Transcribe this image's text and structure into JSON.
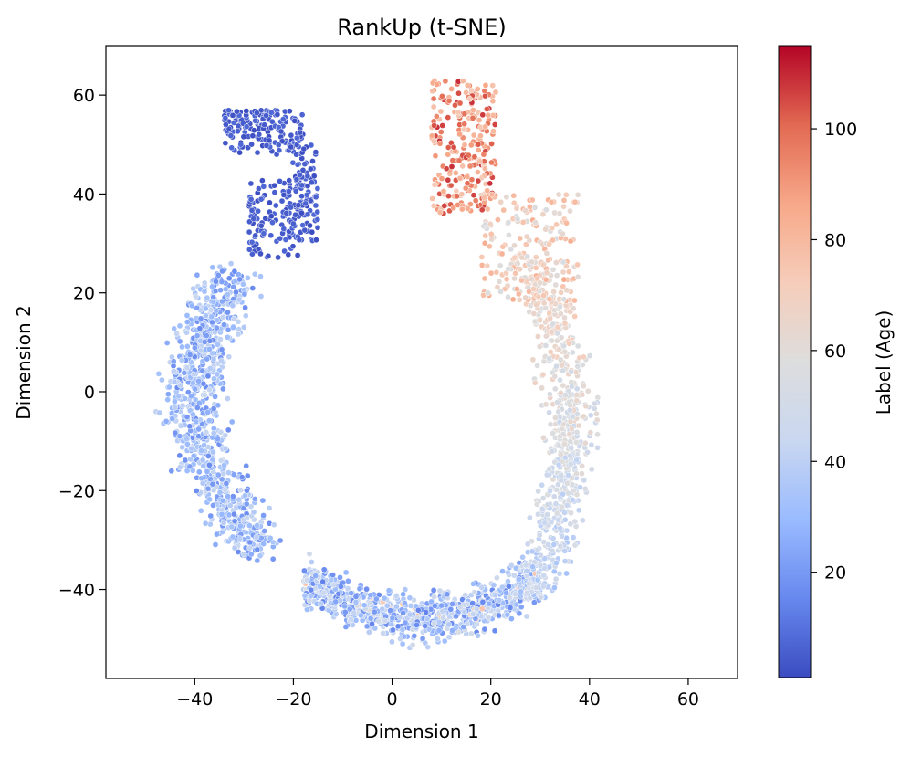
{
  "chart_data": {
    "type": "scatter",
    "title": "RankUp (t-SNE)",
    "xlabel": "Dimension 1",
    "ylabel": "Dimension 2",
    "xlim": [
      -58,
      70
    ],
    "ylim": [
      -58,
      70
    ],
    "xticks": [
      -40,
      -20,
      0,
      20,
      40,
      60
    ],
    "yticks": [
      -40,
      -20,
      0,
      20,
      40,
      60
    ],
    "xtick_labels": [
      "−40",
      "−20",
      "0",
      "20",
      "40",
      "60"
    ],
    "ytick_labels": [
      "−40",
      "−20",
      "0",
      "20",
      "40",
      "60"
    ],
    "grid": false,
    "colorbar": {
      "label": "Label (Age)",
      "range": [
        1,
        115
      ],
      "ticks": [
        20,
        40,
        60,
        80,
        100
      ],
      "tick_labels": [
        "20",
        "40",
        "60",
        "80",
        "100"
      ],
      "colormap": "coolwarm",
      "stops": [
        "#3b4cc0",
        "#6788ee",
        "#9abbff",
        "#c9d7f0",
        "#dddddd",
        "#f6cdba",
        "#f7a889",
        "#e26952",
        "#b40426"
      ]
    },
    "clusters": [
      {
        "name": "upper-left blue loop",
        "x_range": [
          -34,
          -15
        ],
        "y_range": [
          26,
          58
        ],
        "age_range": [
          1,
          8
        ]
      },
      {
        "name": "left arm",
        "x_range": [
          -50,
          -17
        ],
        "y_range": [
          -35,
          25
        ],
        "age_range": [
          15,
          45
        ]
      },
      {
        "name": "bottom arc",
        "x_range": [
          -18,
          30
        ],
        "y_range": [
          -52,
          -25
        ],
        "age_range": [
          15,
          60
        ]
      },
      {
        "name": "right arm",
        "x_range": [
          20,
          44
        ],
        "y_range": [
          -45,
          40
        ],
        "age_range": [
          25,
          75
        ]
      },
      {
        "name": "upper-right red tip",
        "x_range": [
          8,
          20
        ],
        "y_range": [
          35,
          64
        ],
        "age_range": [
          70,
          110
        ]
      }
    ]
  }
}
